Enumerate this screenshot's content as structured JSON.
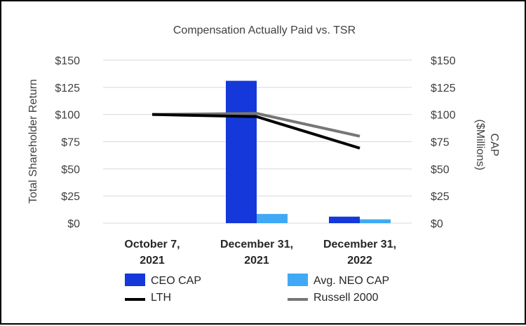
{
  "chart_data": {
    "type": "bar",
    "title": "Compensation Actually Paid vs. TSR",
    "ylabel_left": "Total Shareholder Return",
    "ylabel_right_line1": "CAP",
    "ylabel_right_line2": "($Millions)",
    "ylim": [
      0,
      150
    ],
    "yticks": [
      "$0",
      "$25",
      "$50",
      "$75",
      "$100",
      "$125",
      "$150"
    ],
    "ytick_values": [
      0,
      25,
      50,
      75,
      100,
      125,
      150
    ],
    "categories": [
      {
        "line1": "October 7,",
        "line2": "2021"
      },
      {
        "line1": "December 31,",
        "line2": "2021"
      },
      {
        "line1": "December 31,",
        "line2": "2022"
      }
    ],
    "bar_series": [
      {
        "name": "CEO CAP",
        "color": "#1438d9",
        "values": [
          null,
          131,
          6
        ]
      },
      {
        "name": "Avg. NEO CAP",
        "color": "#3fa9f5",
        "values": [
          null,
          8.5,
          3.5
        ]
      }
    ],
    "line_series": [
      {
        "name": "LTH",
        "color": "#000000",
        "values": [
          100,
          98,
          69
        ]
      },
      {
        "name": "Russell 2000",
        "color": "#767676",
        "values": [
          100,
          101,
          80
        ]
      }
    ],
    "grid": true,
    "legend_position": "bottom"
  }
}
